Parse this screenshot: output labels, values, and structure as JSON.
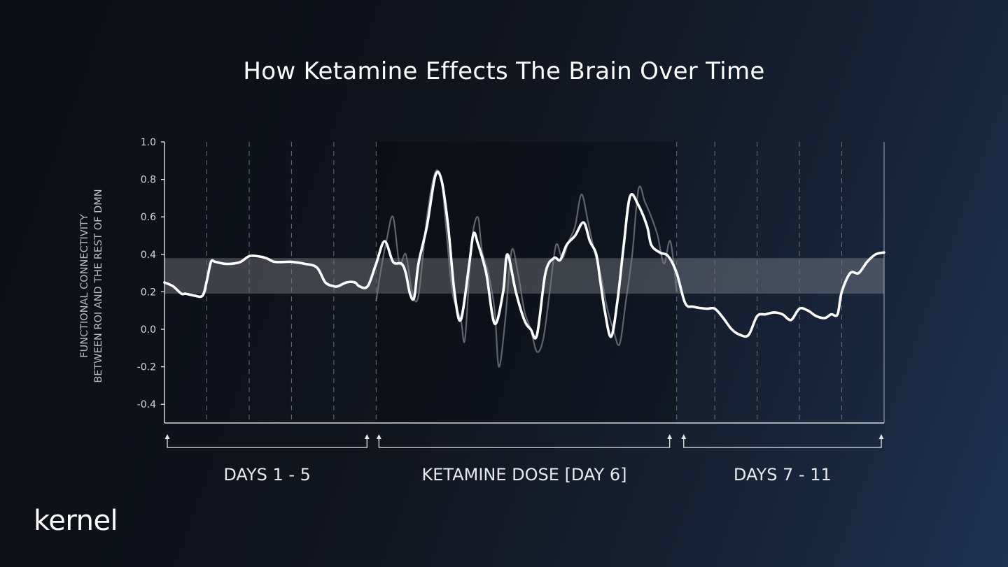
{
  "logo_text": "kernel",
  "colors": {
    "line": "#ffffff",
    "raw_line": "#7a7f88",
    "band": "#ffffff",
    "dose_shade": "#000000",
    "axis": "#ffffff",
    "grid": "#6a707a"
  },
  "chart_data": {
    "type": "line",
    "title": "How Ketamine Effects The Brain Over Time",
    "ylabel": [
      "FUNCTIONAL CONNECTIVITY",
      "BETWEEN ROI AND THE REST OF DMN"
    ],
    "xlabel": "",
    "ylim": [
      -0.5,
      1.0
    ],
    "xlim": [
      0,
      17
    ],
    "yticks": [
      "1.0",
      "0.8",
      "0.6",
      "0.4",
      "0.2",
      "0.0",
      "-0.2",
      "-0.4"
    ],
    "ytick_values": [
      1.0,
      0.8,
      0.6,
      0.4,
      0.2,
      0.0,
      -0.2,
      -0.4
    ],
    "reference_band": [
      0.19,
      0.38
    ],
    "shaded_region": [
      5,
      12.1
    ],
    "dashed_gridlines_x": [
      1,
      2,
      3,
      4,
      5,
      12.1,
      13,
      14,
      15,
      16
    ],
    "grid": "vertical dashed",
    "legend": "none",
    "periods": [
      {
        "label": "DAYS 1 - 5",
        "start": 0,
        "end": 4.85
      },
      {
        "label": "KETAMINE DOSE [DAY 6]",
        "start": 5.0,
        "end": 12.0
      },
      {
        "label": "DAYS 7 - 11",
        "start": 12.2,
        "end": 17
      }
    ],
    "series": [
      {
        "style": "smoothed",
        "x": [
          0,
          0.2,
          0.4,
          0.5,
          0.7,
          0.9,
          1.0,
          1.1,
          1.2,
          1.4,
          1.6,
          1.8,
          2.0,
          2.2,
          2.4,
          2.6,
          2.9,
          3.0,
          3.3,
          3.6,
          3.8,
          4.0,
          4.1,
          4.3,
          4.5,
          4.6,
          4.8,
          5.0,
          5.2,
          5.4,
          5.6,
          5.7,
          5.8,
          5.9,
          6.0,
          6.2,
          6.4,
          6.55,
          6.7,
          6.85,
          7.0,
          7.2,
          7.3,
          7.4,
          7.6,
          7.8,
          8.0,
          8.1,
          8.3,
          8.5,
          8.65,
          8.8,
          9.0,
          9.2,
          9.35,
          9.5,
          9.7,
          9.9,
          10.05,
          10.2,
          10.3,
          10.4,
          10.55,
          10.7,
          10.85,
          11.0,
          11.2,
          11.4,
          11.5,
          11.7,
          11.9,
          12.1,
          12.3,
          12.5,
          12.8,
          13.0,
          13.2,
          13.4,
          13.6,
          13.8,
          14.0,
          14.2,
          14.4,
          14.6,
          14.8,
          15.0,
          15.2,
          15.4,
          15.6,
          15.75,
          15.9,
          16.0,
          16.2,
          16.4,
          16.6,
          16.8,
          17
        ],
        "y": [
          0.25,
          0.23,
          0.19,
          0.19,
          0.18,
          0.18,
          0.26,
          0.36,
          0.36,
          0.35,
          0.35,
          0.36,
          0.39,
          0.39,
          0.38,
          0.36,
          0.36,
          0.36,
          0.35,
          0.33,
          0.25,
          0.23,
          0.23,
          0.25,
          0.25,
          0.23,
          0.23,
          0.35,
          0.47,
          0.36,
          0.35,
          0.3,
          0.19,
          0.17,
          0.35,
          0.55,
          0.82,
          0.79,
          0.55,
          0.2,
          0.05,
          0.35,
          0.51,
          0.46,
          0.3,
          0.03,
          0.2,
          0.4,
          0.2,
          0.05,
          0.0,
          -0.03,
          0.3,
          0.38,
          0.37,
          0.45,
          0.5,
          0.57,
          0.47,
          0.4,
          0.25,
          0.1,
          -0.04,
          0.15,
          0.45,
          0.71,
          0.66,
          0.55,
          0.45,
          0.41,
          0.39,
          0.3,
          0.14,
          0.12,
          0.11,
          0.11,
          0.06,
          0.0,
          -0.03,
          -0.03,
          0.07,
          0.08,
          0.09,
          0.08,
          0.05,
          0.11,
          0.1,
          0.07,
          0.06,
          0.08,
          0.08,
          0.2,
          0.3,
          0.3,
          0.36,
          0.4,
          0.41
        ]
      },
      {
        "style": "raw",
        "x": [
          5.0,
          5.1,
          5.25,
          5.4,
          5.55,
          5.7,
          5.85,
          6.0,
          6.2,
          6.4,
          6.55,
          6.65,
          6.8,
          7.0,
          7.1,
          7.25,
          7.4,
          7.5,
          7.65,
          7.8,
          7.9,
          8.05,
          8.2,
          8.35,
          8.5,
          8.65,
          8.8,
          8.95,
          9.1,
          9.25,
          9.4,
          9.55,
          9.7,
          9.85,
          10.0,
          10.15,
          10.3,
          10.45,
          10.6,
          10.75,
          10.9,
          11.05,
          11.2,
          11.35,
          11.5,
          11.65,
          11.8,
          11.95,
          12.1
        ],
        "y": [
          0.15,
          0.3,
          0.48,
          0.6,
          0.35,
          0.4,
          0.2,
          0.18,
          0.6,
          0.84,
          0.78,
          0.55,
          0.2,
          0.05,
          -0.05,
          0.45,
          0.6,
          0.42,
          0.3,
          0.1,
          -0.2,
          0.05,
          0.42,
          0.3,
          0.1,
          0.0,
          -0.12,
          -0.05,
          0.2,
          0.45,
          0.38,
          0.47,
          0.55,
          0.72,
          0.58,
          0.42,
          0.3,
          0.12,
          0.0,
          -0.08,
          0.15,
          0.4,
          0.75,
          0.68,
          0.6,
          0.5,
          0.35,
          0.47,
          0.2
        ]
      }
    ]
  }
}
